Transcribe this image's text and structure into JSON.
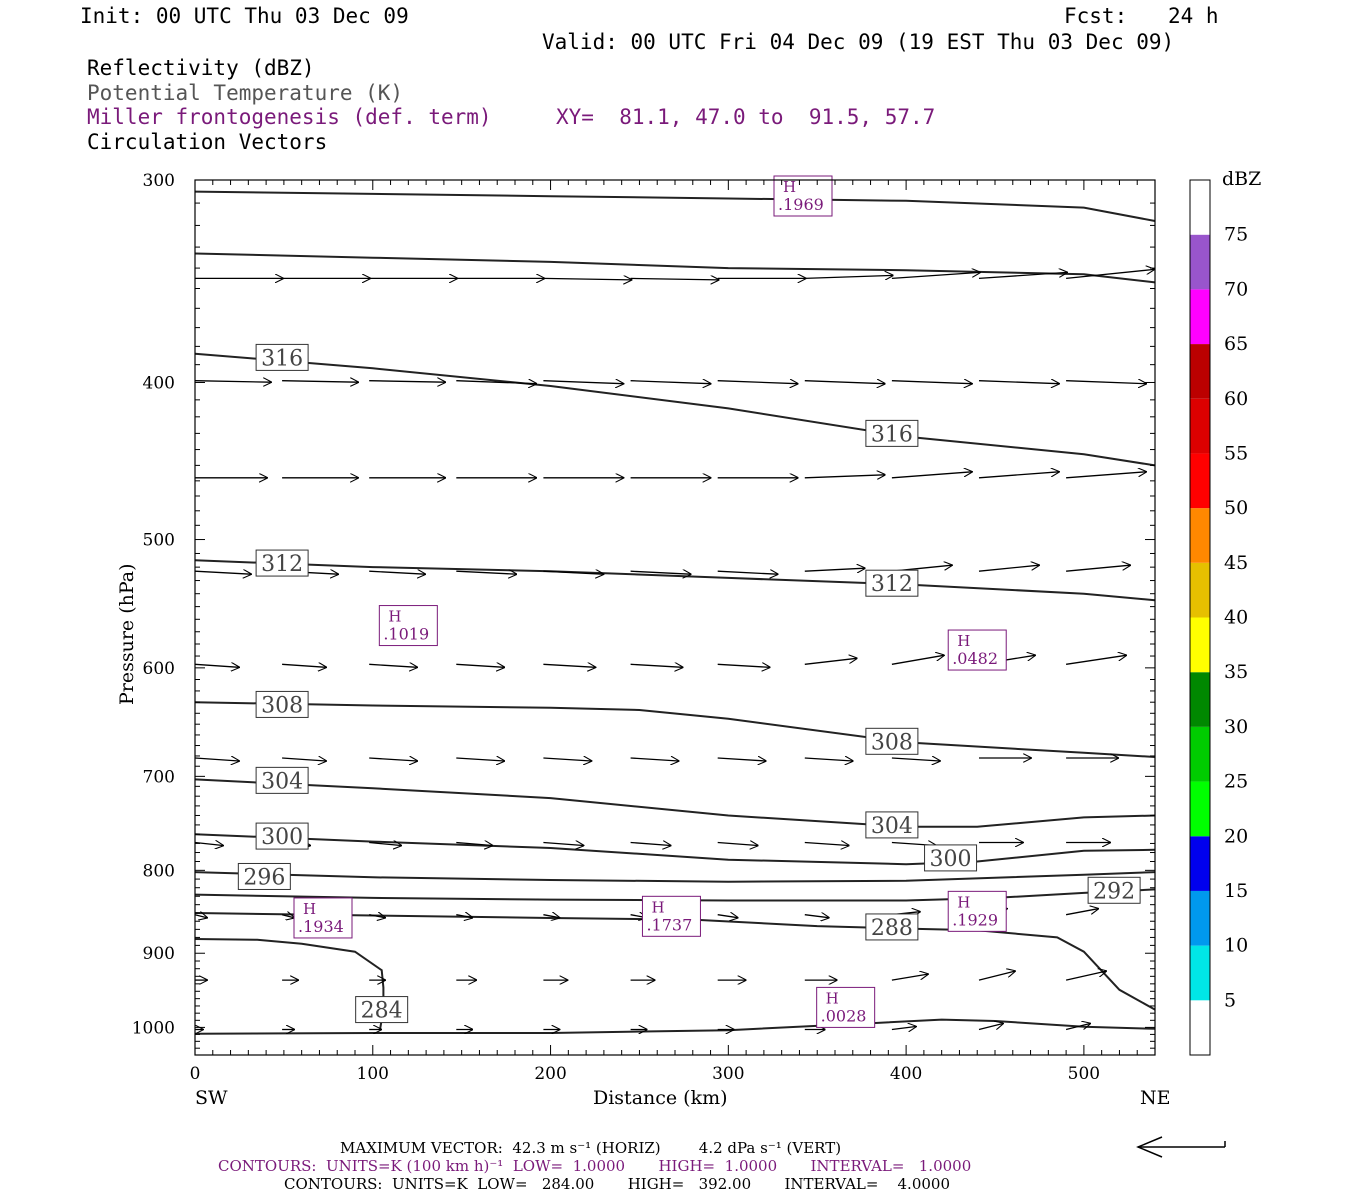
{
  "header": {
    "init": "Init: 00 UTC Thu 03 Dec 09",
    "fcst_label": "Fcst:",
    "fcst_value": "24 h",
    "valid": "Valid: 00 UTC Fri 04 Dec 09 (19 EST Thu 03 Dec 09)"
  },
  "fields": {
    "reflectivity": "Reflectivity (dBZ)",
    "potential_temperature": "Potential Temperature (K)",
    "miller": "Miller frontogenesis (def. term)",
    "xy": "XY=  81.1, 47.0 to  91.5, 57.7",
    "circulation": "Circulation Vectors"
  },
  "footer": {
    "max_vector": "MAXIMUM VECTOR:  42.3 m s⁻¹ (HORIZ)        4.2 dPa s⁻¹ (VERT)",
    "contours_purple": "CONTOURS:  UNITS=K (100 km h)⁻¹  LOW=  1.0000       HIGH=  1.0000       INTERVAL=   1.0000",
    "contours_black": "CONTOURS:  UNITS=K  LOW=   284.00       HIGH=   392.00       INTERVAL=    4.0000"
  },
  "colorbar": {
    "unit": "dBZ",
    "labels": [
      "5",
      "10",
      "15",
      "20",
      "25",
      "30",
      "35",
      "40",
      "45",
      "50",
      "55",
      "60",
      "65",
      "70",
      "75"
    ],
    "colors": [
      "#00e6e6",
      "#0099ee",
      "#0000ee",
      "#00ff00",
      "#00cc00",
      "#008800",
      "#ffff00",
      "#e6c000",
      "#ff8800",
      "#ff0000",
      "#dd0000",
      "#bb0000",
      "#ff00ff",
      "#9955cc"
    ]
  },
  "chart_data": {
    "type": "contour-cross-section",
    "xlabel": "Distance (km)",
    "ylabel": "Pressure (hPa)",
    "xlim": [
      0,
      540
    ],
    "ylim": [
      1040,
      300
    ],
    "y_scale": "log-pressure",
    "x_ticks": [
      "0",
      "100",
      "200",
      "300",
      "400",
      "500"
    ],
    "y_ticks": [
      "300",
      "400",
      "500",
      "600",
      "700",
      "800",
      "900",
      "1000"
    ],
    "x_end_labels": {
      "left": "SW",
      "right": "NE"
    },
    "theta_contours": [
      {
        "label": "",
        "points": [
          [
            0,
            305
          ],
          [
            100,
            306
          ],
          [
            200,
            307
          ],
          [
            300,
            308
          ],
          [
            400,
            309
          ],
          [
            500,
            312
          ],
          [
            540,
            318
          ]
        ]
      },
      {
        "label": "",
        "points": [
          [
            0,
            333
          ],
          [
            100,
            335
          ],
          [
            200,
            337
          ],
          [
            300,
            340
          ],
          [
            400,
            341
          ],
          [
            500,
            343
          ],
          [
            540,
            347
          ]
        ]
      },
      {
        "label": "316",
        "label_pos": [
          49,
          386
        ],
        "points": [
          [
            0,
            384
          ],
          [
            100,
            392
          ],
          [
            200,
            402
          ],
          [
            300,
            415
          ],
          [
            400,
            432
          ],
          [
            500,
            443
          ],
          [
            540,
            450
          ]
        ]
      },
      {
        "label": "316",
        "label_pos": [
          392,
          430
        ],
        "points": []
      },
      {
        "label": "312",
        "label_pos": [
          49,
          517
        ],
        "points": [
          [
            0,
            515
          ],
          [
            100,
            520
          ],
          [
            200,
            523
          ],
          [
            300,
            528
          ],
          [
            400,
            533
          ],
          [
            500,
            540
          ],
          [
            540,
            545
          ]
        ]
      },
      {
        "label": "312",
        "label_pos": [
          392,
          532
        ],
        "points": []
      },
      {
        "label": "308",
        "label_pos": [
          49,
          632
        ],
        "points": [
          [
            0,
            630
          ],
          [
            100,
            633
          ],
          [
            200,
            635
          ],
          [
            250,
            637
          ],
          [
            300,
            645
          ],
          [
            400,
            667
          ],
          [
            500,
            677
          ],
          [
            540,
            681
          ]
        ]
      },
      {
        "label": "308",
        "label_pos": [
          392,
          666
        ],
        "points": []
      },
      {
        "label": "304",
        "label_pos": [
          49,
          704
        ],
        "points": [
          [
            0,
            703
          ],
          [
            100,
            712
          ],
          [
            200,
            722
          ],
          [
            300,
            740
          ],
          [
            400,
            752
          ],
          [
            440,
            752
          ],
          [
            500,
            742
          ],
          [
            540,
            740
          ]
        ]
      },
      {
        "label": "304",
        "label_pos": [
          392,
          750
        ],
        "points": []
      },
      {
        "label": "300",
        "label_pos": [
          49,
          762
        ],
        "points": [
          [
            0,
            760
          ],
          [
            100,
            768
          ],
          [
            200,
            775
          ],
          [
            300,
            788
          ],
          [
            400,
            793
          ],
          [
            440,
            790
          ],
          [
            500,
            778
          ],
          [
            540,
            777
          ]
        ]
      },
      {
        "label": "300",
        "label_pos": [
          425,
          786
        ],
        "points": []
      },
      {
        "label": "296",
        "label_pos": [
          39,
          807
        ],
        "points": [
          [
            0,
            802
          ],
          [
            100,
            808
          ],
          [
            200,
            811
          ],
          [
            300,
            813
          ],
          [
            400,
            812
          ],
          [
            500,
            805
          ],
          [
            540,
            802
          ]
        ]
      },
      {
        "label": "292",
        "label_pos": [
          517,
          823
        ],
        "points": [
          [
            0,
            828
          ],
          [
            100,
            832
          ],
          [
            200,
            834
          ],
          [
            300,
            835
          ],
          [
            400,
            835
          ],
          [
            450,
            832
          ],
          [
            500,
            826
          ],
          [
            540,
            822
          ]
        ]
      },
      {
        "label": "288",
        "label_pos": [
          392,
          867
        ],
        "points": [
          [
            0,
            850
          ],
          [
            100,
            853
          ],
          [
            200,
            856
          ],
          [
            280,
            858
          ],
          [
            350,
            866
          ],
          [
            400,
            869
          ],
          [
            440,
            871
          ],
          [
            485,
            880
          ],
          [
            500,
            898
          ],
          [
            520,
            948
          ],
          [
            540,
            975
          ]
        ]
      },
      {
        "label": "284",
        "label_pos": [
          105,
          975
        ],
        "points": [
          [
            0,
            882
          ],
          [
            35,
            883
          ],
          [
            60,
            888
          ],
          [
            90,
            898
          ],
          [
            105,
            922
          ],
          [
            106,
            945
          ],
          [
            106,
            975
          ],
          [
            104,
            1004
          ]
        ]
      },
      {
        "label": "",
        "points": [
          [
            0,
            1009
          ],
          [
            100,
            1008
          ],
          [
            200,
            1008
          ],
          [
            300,
            1004
          ],
          [
            380,
            994
          ],
          [
            420,
            989
          ],
          [
            450,
            991
          ],
          [
            500,
            999
          ],
          [
            540,
            1002
          ]
        ]
      }
    ],
    "frontogenesis_maxima": [
      {
        "label": "H",
        "value": ".1969",
        "x": 342,
        "p": 302
      },
      {
        "label": "H",
        "value": ".1019",
        "x": 120,
        "p": 565
      },
      {
        "label": "H",
        "value": ".0482",
        "x": 440,
        "p": 585
      },
      {
        "label": "H",
        "value": ".1934",
        "x": 72,
        "p": 856
      },
      {
        "label": "H",
        "value": ".1737",
        "x": 268,
        "p": 854
      },
      {
        "label": "H",
        "value": ".1929",
        "x": 440,
        "p": 848
      },
      {
        "label": "H",
        "value": ".0028",
        "x": 366,
        "p": 972
      }
    ],
    "vectors": {
      "x_positions": [
        0,
        49,
        98,
        147,
        196,
        245,
        294,
        343,
        392,
        441,
        490
      ],
      "rows": [
        {
          "p": 345,
          "u": [
            44,
            44,
            44,
            44,
            44,
            44,
            44,
            44,
            44,
            44,
            44
          ],
          "w": [
            0,
            0,
            0,
            0,
            -0.5,
            -0.5,
            0,
            1,
            2,
            2,
            3
          ]
        },
        {
          "p": 399,
          "u": [
            38,
            38,
            38,
            40,
            40,
            40,
            40,
            40,
            40,
            40,
            40
          ],
          "w": [
            -0.5,
            -0.5,
            -0.5,
            -1,
            -1,
            -1,
            -1,
            -1,
            -1,
            -1,
            -1
          ]
        },
        {
          "p": 458,
          "u": [
            36,
            38,
            38,
            40,
            40,
            40,
            40,
            40,
            40,
            40,
            40
          ],
          "w": [
            0,
            0,
            0,
            0,
            0,
            0,
            0,
            1,
            2,
            2,
            2
          ]
        },
        {
          "p": 523,
          "u": [
            28,
            28,
            28,
            30,
            30,
            30,
            30,
            30,
            30,
            30,
            32
          ],
          "w": [
            -1,
            -1,
            -1,
            -1,
            -1,
            -1,
            -1,
            1,
            2,
            2,
            2
          ]
        },
        {
          "p": 597,
          "u": [
            22,
            22,
            24,
            24,
            26,
            26,
            26,
            26,
            26,
            28,
            30
          ],
          "w": [
            -1,
            -1,
            -1,
            -1,
            -1,
            -1,
            -1,
            2,
            3,
            3,
            3
          ]
        },
        {
          "p": 682,
          "u": [
            22,
            22,
            24,
            24,
            24,
            24,
            24,
            24,
            24,
            26,
            26
          ],
          "w": [
            -1,
            -1,
            -1,
            -1,
            -1,
            -1,
            -1,
            -1,
            -1,
            0,
            0
          ]
        },
        {
          "p": 769,
          "u": [
            14,
            14,
            16,
            18,
            20,
            20,
            20,
            22,
            22,
            22,
            22
          ],
          "w": [
            -1,
            -1,
            -1,
            -1,
            -1,
            -1,
            -1,
            -1,
            -1,
            0,
            0
          ]
        },
        {
          "p": 852,
          "u": [
            6,
            6,
            8,
            8,
            8,
            8,
            10,
            12,
            14,
            14,
            16
          ],
          "w": [
            -1,
            -1,
            -1,
            -1,
            -1,
            -1,
            -1,
            -1,
            1,
            2,
            2
          ]
        },
        {
          "p": 935,
          "u": [
            6,
            8,
            8,
            10,
            12,
            12,
            14,
            16,
            18,
            18,
            20
          ],
          "w": [
            0,
            0,
            0,
            0,
            0,
            0,
            0,
            0,
            2,
            3,
            3
          ]
        },
        {
          "p": 1003,
          "u": [
            4,
            6,
            6,
            8,
            8,
            8,
            8,
            10,
            12,
            12,
            12
          ],
          "w": [
            0,
            0,
            0,
            0,
            0,
            0,
            0,
            0,
            1,
            2,
            2
          ]
        }
      ]
    }
  }
}
